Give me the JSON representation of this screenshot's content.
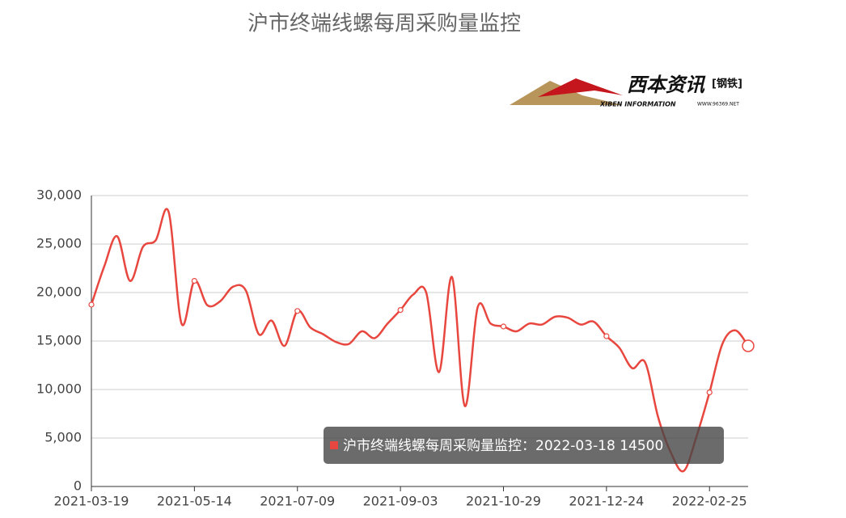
{
  "chart_data": {
    "type": "line",
    "title": "沪市终端线螺每周采购量监控",
    "logo": {
      "name": "西本资讯",
      "tag": "[钢铁]",
      "subtitle": "XIBEN INFORMATION",
      "url": "WWW.96369.NET"
    },
    "categories": [
      "2021-03-19",
      null,
      null,
      null,
      null,
      null,
      null,
      null,
      "2021-05-14",
      null,
      null,
      null,
      null,
      null,
      null,
      null,
      "2021-07-09",
      null,
      null,
      null,
      null,
      null,
      null,
      null,
      "2021-09-03",
      null,
      null,
      null,
      null,
      null,
      null,
      null,
      "2021-10-29",
      null,
      null,
      null,
      null,
      null,
      null,
      null,
      "2021-12-24",
      null,
      null,
      null,
      null,
      null,
      null,
      null,
      "2022-02-25",
      null,
      null,
      null
    ],
    "series": [
      {
        "name": "沪市终端线螺每周采购量监控",
        "color": "#e8473f",
        "values": [
          18750,
          22700,
          25800,
          21200,
          24700,
          25400,
          28300,
          16800,
          21200,
          18700,
          19100,
          20600,
          20200,
          15700,
          17100,
          14500,
          18100,
          16400,
          15700,
          14900,
          14700,
          16000,
          15300,
          16800,
          18200,
          19800,
          20000,
          11800,
          21600,
          8300,
          18500,
          16800,
          16500,
          16000,
          16800,
          16700,
          17500,
          17400,
          16700,
          17000,
          15500,
          14300,
          12200,
          12800,
          7200,
          3500,
          1600,
          5200,
          9700,
          14700,
          16100,
          14500
        ]
      }
    ],
    "ylim": [
      0,
      30000
    ],
    "yticks": [
      0,
      {
        "value": 5000,
        "label": "5,000"
      },
      {
        "value": 10000,
        "label": "10,000"
      },
      {
        "value": 15000,
        "label": "15,000"
      },
      {
        "value": 20000,
        "label": "20,000"
      },
      {
        "value": 25000,
        "label": "25,000"
      },
      {
        "value": 30000,
        "label": "30,000"
      }
    ],
    "grid": true,
    "tooltip": "沪市终端线螺每周采购量监控：2022-03-18  14500"
  }
}
